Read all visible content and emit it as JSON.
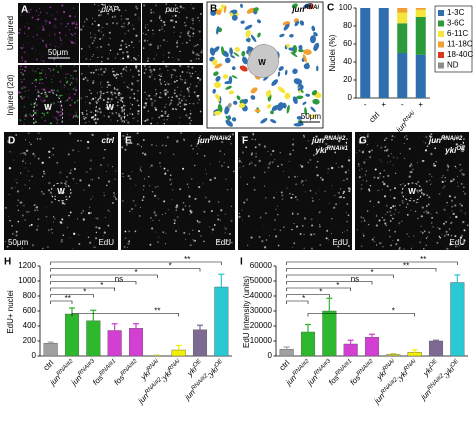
{
  "panels": {
    "A": {
      "letter": "A",
      "columns": [
        "dIAP",
        "puc"
      ],
      "rows": [
        "Uninjured",
        "Injured (2d)"
      ],
      "scale": "50μm",
      "wound": "W"
    },
    "B": {
      "letter": "B",
      "title": [
        [
          "jun",
          "RNAi"
        ]
      ],
      "wound": "W",
      "scale": "50μm"
    },
    "D": {
      "letter": "D",
      "title": [
        [
          "ctrl"
        ]
      ],
      "wound": "W",
      "scale": "50μm",
      "stain": "EdU"
    },
    "E": {
      "letter": "E",
      "title": [
        [
          "jun",
          "RNAi#2"
        ]
      ],
      "stain": "EdU"
    },
    "F": {
      "letter": "F",
      "title": [
        [
          "jun",
          "RNAi#2",
          ";"
        ],
        [
          "yki",
          "RNAi#1"
        ]
      ],
      "stain": "EdU"
    },
    "G": {
      "letter": "G",
      "title": [
        [
          "jun",
          "RNAi#2",
          ";"
        ],
        [
          "yki",
          "OE"
        ]
      ],
      "wound": "W",
      "stain": "EdU"
    }
  },
  "chart_data": [
    {
      "type": "stacked-bar",
      "letter": "C",
      "ylabel": "Nuclei (%)",
      "ylim": [
        0,
        100
      ],
      "yticks": [
        0,
        20,
        40,
        60,
        80,
        100
      ],
      "categories": [
        "-",
        "+",
        "-",
        "+"
      ],
      "groups": [
        [
          "ctrl"
        ],
        [
          "jun",
          "RNAi"
        ]
      ],
      "series": [
        {
          "name": "1-3C",
          "color": "#2f6fb0",
          "values": [
            100,
            100,
            50,
            48
          ]
        },
        {
          "name": "3-6C",
          "color": "#2a9a3a",
          "values": [
            0,
            0,
            33,
            42
          ]
        },
        {
          "name": "6-11C",
          "color": "#f5e53a",
          "values": [
            0,
            0,
            12,
            8
          ]
        },
        {
          "name": "11-18C",
          "color": "#f0a030",
          "values": [
            0,
            0,
            5,
            2
          ]
        },
        {
          "name": "18-40C",
          "color": "#d9381e",
          "values": [
            0,
            0,
            0,
            0
          ]
        },
        {
          "name": "ND",
          "color": "#8c8c8c",
          "values": [
            0,
            0,
            0,
            0
          ]
        }
      ]
    },
    {
      "type": "bar",
      "letter": "H",
      "ylabel": "EdU+ nuclei",
      "ylim": [
        0,
        1200
      ],
      "yticks": [
        0,
        200,
        400,
        600,
        800,
        1000,
        1200
      ],
      "categories": [
        [
          "ctrl"
        ],
        [
          "jun",
          "RNAi#2"
        ],
        [
          "jun",
          "RNAi#3"
        ],
        [
          "fos",
          "RNAi#1"
        ],
        [
          "fos",
          "RNAi#2"
        ],
        [
          "yki",
          "RNAi"
        ],
        [
          "jun",
          "RNAi#2",
          ";yki",
          "RNAi"
        ],
        [
          "yki",
          "OE"
        ],
        [
          "jun",
          "RNAi#2",
          ";yki",
          "OE"
        ]
      ],
      "values": [
        170,
        560,
        470,
        340,
        370,
        5,
        80,
        350,
        920
      ],
      "errors": [
        15,
        80,
        140,
        90,
        60,
        5,
        60,
        60,
        170
      ],
      "colors": [
        "#a0a0a0",
        "#2db82d",
        "#2db82d",
        "#d23fd2",
        "#d23fd2",
        "#c8c832",
        "#f0f000",
        "#7d6a93",
        "#29c8d2"
      ],
      "comparisons": [
        {
          "groups": [
            0,
            8
          ],
          "label": "**"
        },
        {
          "groups": [
            0,
            7
          ],
          "label": "*"
        },
        {
          "groups": [
            0,
            5
          ],
          "label": "*"
        },
        {
          "groups": [
            0,
            4
          ],
          "label": "ns"
        },
        {
          "groups": [
            0,
            3
          ],
          "label": "*"
        },
        {
          "groups": [
            0,
            2
          ],
          "label": "*"
        },
        {
          "groups": [
            0,
            1
          ],
          "label": "**"
        },
        {
          "groups": [
            1,
            6
          ],
          "label": "**"
        }
      ]
    },
    {
      "type": "bar",
      "letter": "I",
      "ylabel": "EdU Intensity (units)",
      "ylim": [
        0,
        60000
      ],
      "yticks": [
        0,
        10000,
        20000,
        30000,
        40000,
        50000,
        60000
      ],
      "categories": [
        [
          "ctrl"
        ],
        [
          "jun",
          "RNAi#2"
        ],
        [
          "jun",
          "RNAi#3"
        ],
        [
          "fos",
          "RNAi#1"
        ],
        [
          "fos",
          "RNAi#2"
        ],
        [
          "yki",
          "RNAi"
        ],
        [
          "jun",
          "RNAi#2",
          ";yki",
          "RNAi"
        ],
        [
          "yki",
          "OE"
        ],
        [
          "jun",
          "RNAi#2",
          ";yki",
          "OE"
        ]
      ],
      "values": [
        4500,
        16000,
        30000,
        8000,
        12500,
        1000,
        2500,
        10000,
        49000
      ],
      "errors": [
        1500,
        5000,
        8500,
        2500,
        2000,
        500,
        1500,
        500,
        5000
      ],
      "colors": [
        "#a0a0a0",
        "#2db82d",
        "#2db82d",
        "#d23fd2",
        "#d23fd2",
        "#c8c832",
        "#f0f000",
        "#7d6a93",
        "#29c8d2"
      ],
      "comparisons": [
        {
          "groups": [
            0,
            8
          ],
          "label": "**"
        },
        {
          "groups": [
            0,
            7
          ],
          "label": "**"
        },
        {
          "groups": [
            0,
            5
          ],
          "label": "*"
        },
        {
          "groups": [
            0,
            4
          ],
          "label": "ns"
        },
        {
          "groups": [
            0,
            3
          ],
          "label": "*"
        },
        {
          "groups": [
            0,
            2
          ],
          "label": "*"
        },
        {
          "groups": [
            0,
            1
          ],
          "label": "*"
        },
        {
          "groups": [
            1,
            6
          ],
          "label": "*"
        }
      ]
    }
  ]
}
